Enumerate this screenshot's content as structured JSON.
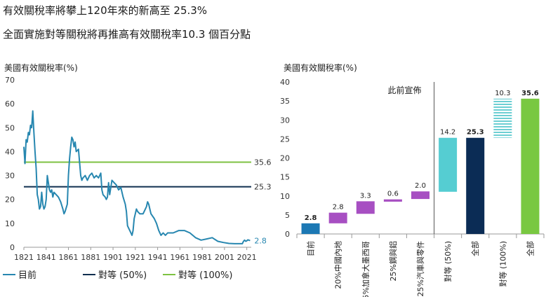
{
  "header": {
    "title": "有效關稅率將攀上120年來的新高至 25.3%",
    "subtitle": "全面實施對等關稅將再推高有效關稅率10.3 個百分點"
  },
  "colors": {
    "history": "#2787b0",
    "current": "#0f2f4f",
    "full": "#7dc242",
    "bar_current": "#1c78b4",
    "bar_purple": "#a74fc2",
    "bar_cyan": "#55cdd2",
    "bar_navy": "#0b2c55",
    "bar_hatch": "#6ccfd3",
    "bar_green": "#79c841"
  },
  "chart_data": [
    {
      "type": "line",
      "ylabel": "美國有效關稅率(%)",
      "ylim": [
        0,
        70
      ],
      "yticks": [
        "0",
        "10",
        "20",
        "30",
        "40",
        "50",
        "60",
        "70"
      ],
      "xlim": [
        1821,
        2025
      ],
      "xticks": [
        "1821",
        "1841",
        "1861",
        "1881",
        "1901",
        "1921",
        "1941",
        "1961",
        "1981",
        "2001",
        "2021"
      ],
      "series": [
        {
          "name": "目前",
          "x": [
            1821,
            1822,
            1823,
            1824,
            1825,
            1826,
            1827,
            1828,
            1829,
            1830,
            1831,
            1832,
            1833,
            1834,
            1835,
            1836,
            1837,
            1838,
            1839,
            1840,
            1841,
            1842,
            1843,
            1844,
            1845,
            1846,
            1847,
            1848,
            1850,
            1852,
            1854,
            1856,
            1857,
            1858,
            1860,
            1861,
            1862,
            1863,
            1864,
            1865,
            1866,
            1867,
            1868,
            1870,
            1872,
            1873,
            1874,
            1876,
            1878,
            1880,
            1882,
            1884,
            1886,
            1888,
            1890,
            1891,
            1892,
            1894,
            1895,
            1896,
            1897,
            1898,
            1900,
            1902,
            1904,
            1906,
            1908,
            1910,
            1912,
            1913,
            1914,
            1916,
            1917,
            1918,
            1919,
            1920,
            1921,
            1922,
            1923,
            1925,
            1928,
            1930,
            1931,
            1932,
            1933,
            1935,
            1938,
            1940,
            1942,
            1944,
            1946,
            1948,
            1950,
            1955,
            1960,
            1965,
            1970,
            1975,
            1980,
            1985,
            1990,
            1995,
            2000,
            2005,
            2010,
            2015,
            2017,
            2018,
            2019,
            2020,
            2021,
            2022,
            2024
          ],
          "y": [
            42,
            35,
            45,
            44,
            48,
            47,
            51,
            50,
            57,
            48,
            40,
            33,
            22,
            20,
            16,
            17,
            23,
            18,
            16,
            17,
            20,
            30,
            27,
            24,
            23,
            24,
            21,
            23,
            22,
            21,
            19,
            16,
            14,
            15,
            18,
            30,
            37,
            42,
            46,
            45,
            42,
            44,
            40,
            41,
            30,
            28,
            29,
            30,
            28,
            30,
            31,
            29,
            30,
            29,
            31,
            24,
            22,
            21,
            20,
            21,
            27,
            22,
            28,
            27,
            26,
            24,
            25,
            21,
            18,
            15,
            9,
            7,
            6,
            5,
            7,
            12,
            14,
            16,
            15,
            14,
            14,
            16,
            17,
            19,
            18,
            14,
            12,
            10,
            7,
            5,
            6,
            5,
            6,
            6,
            7,
            7,
            6,
            4,
            3,
            3.5,
            4,
            2.5,
            2,
            1.6,
            1.5,
            1.5,
            1.5,
            2.5,
            3.0,
            2.5,
            2.7,
            3.1,
            2.8
          ]
        },
        {
          "name": "對等 (50%)",
          "value": 25.3,
          "label": "25.3"
        },
        {
          "name": "對等 (100%)",
          "value": 35.6,
          "label": "35.6"
        }
      ],
      "end_label": "2.8",
      "legend": [
        "目前",
        "對等 (50%)",
        "對等 (100%)"
      ]
    },
    {
      "type": "bar",
      "ylabel": "美國有效關稅率(%)",
      "ylim": [
        0,
        40
      ],
      "yticks": [
        "0",
        "5",
        "10",
        "15",
        "20",
        "25",
        "30",
        "35",
        "40"
      ],
      "annotation": "此前宣佈",
      "categories": [
        {
          "label": "目前",
          "base": 0,
          "top": 2.8,
          "value": "2.8",
          "style": "current"
        },
        {
          "label": "20%中國內地",
          "base": 2.8,
          "top": 5.6,
          "value": "2.8",
          "style": "purple"
        },
        {
          "label": "25%加拿大墨西哥",
          "base": 5.3,
          "top": 8.6,
          "value": "3.3",
          "style": "purple"
        },
        {
          "label": "25%鋼與鋁",
          "base": 8.5,
          "top": 9.1,
          "value": "0.6",
          "style": "purple"
        },
        {
          "label": "25%汽車與零件",
          "base": 9.2,
          "top": 11.2,
          "value": "2.0",
          "style": "purple"
        },
        {
          "label": "對等 (50%)",
          "base": 11.1,
          "top": 25.3,
          "value": "14.2",
          "style": "cyan"
        },
        {
          "label": "全部",
          "base": 0,
          "top": 25.3,
          "value": "25.3",
          "style": "navy"
        },
        {
          "label": "對等 (100%)",
          "base": 25.3,
          "top": 35.6,
          "value": "10.3",
          "style": "hatch"
        },
        {
          "label": "全部",
          "base": 0,
          "top": 35.6,
          "value": "35.6",
          "style": "green"
        }
      ]
    }
  ]
}
